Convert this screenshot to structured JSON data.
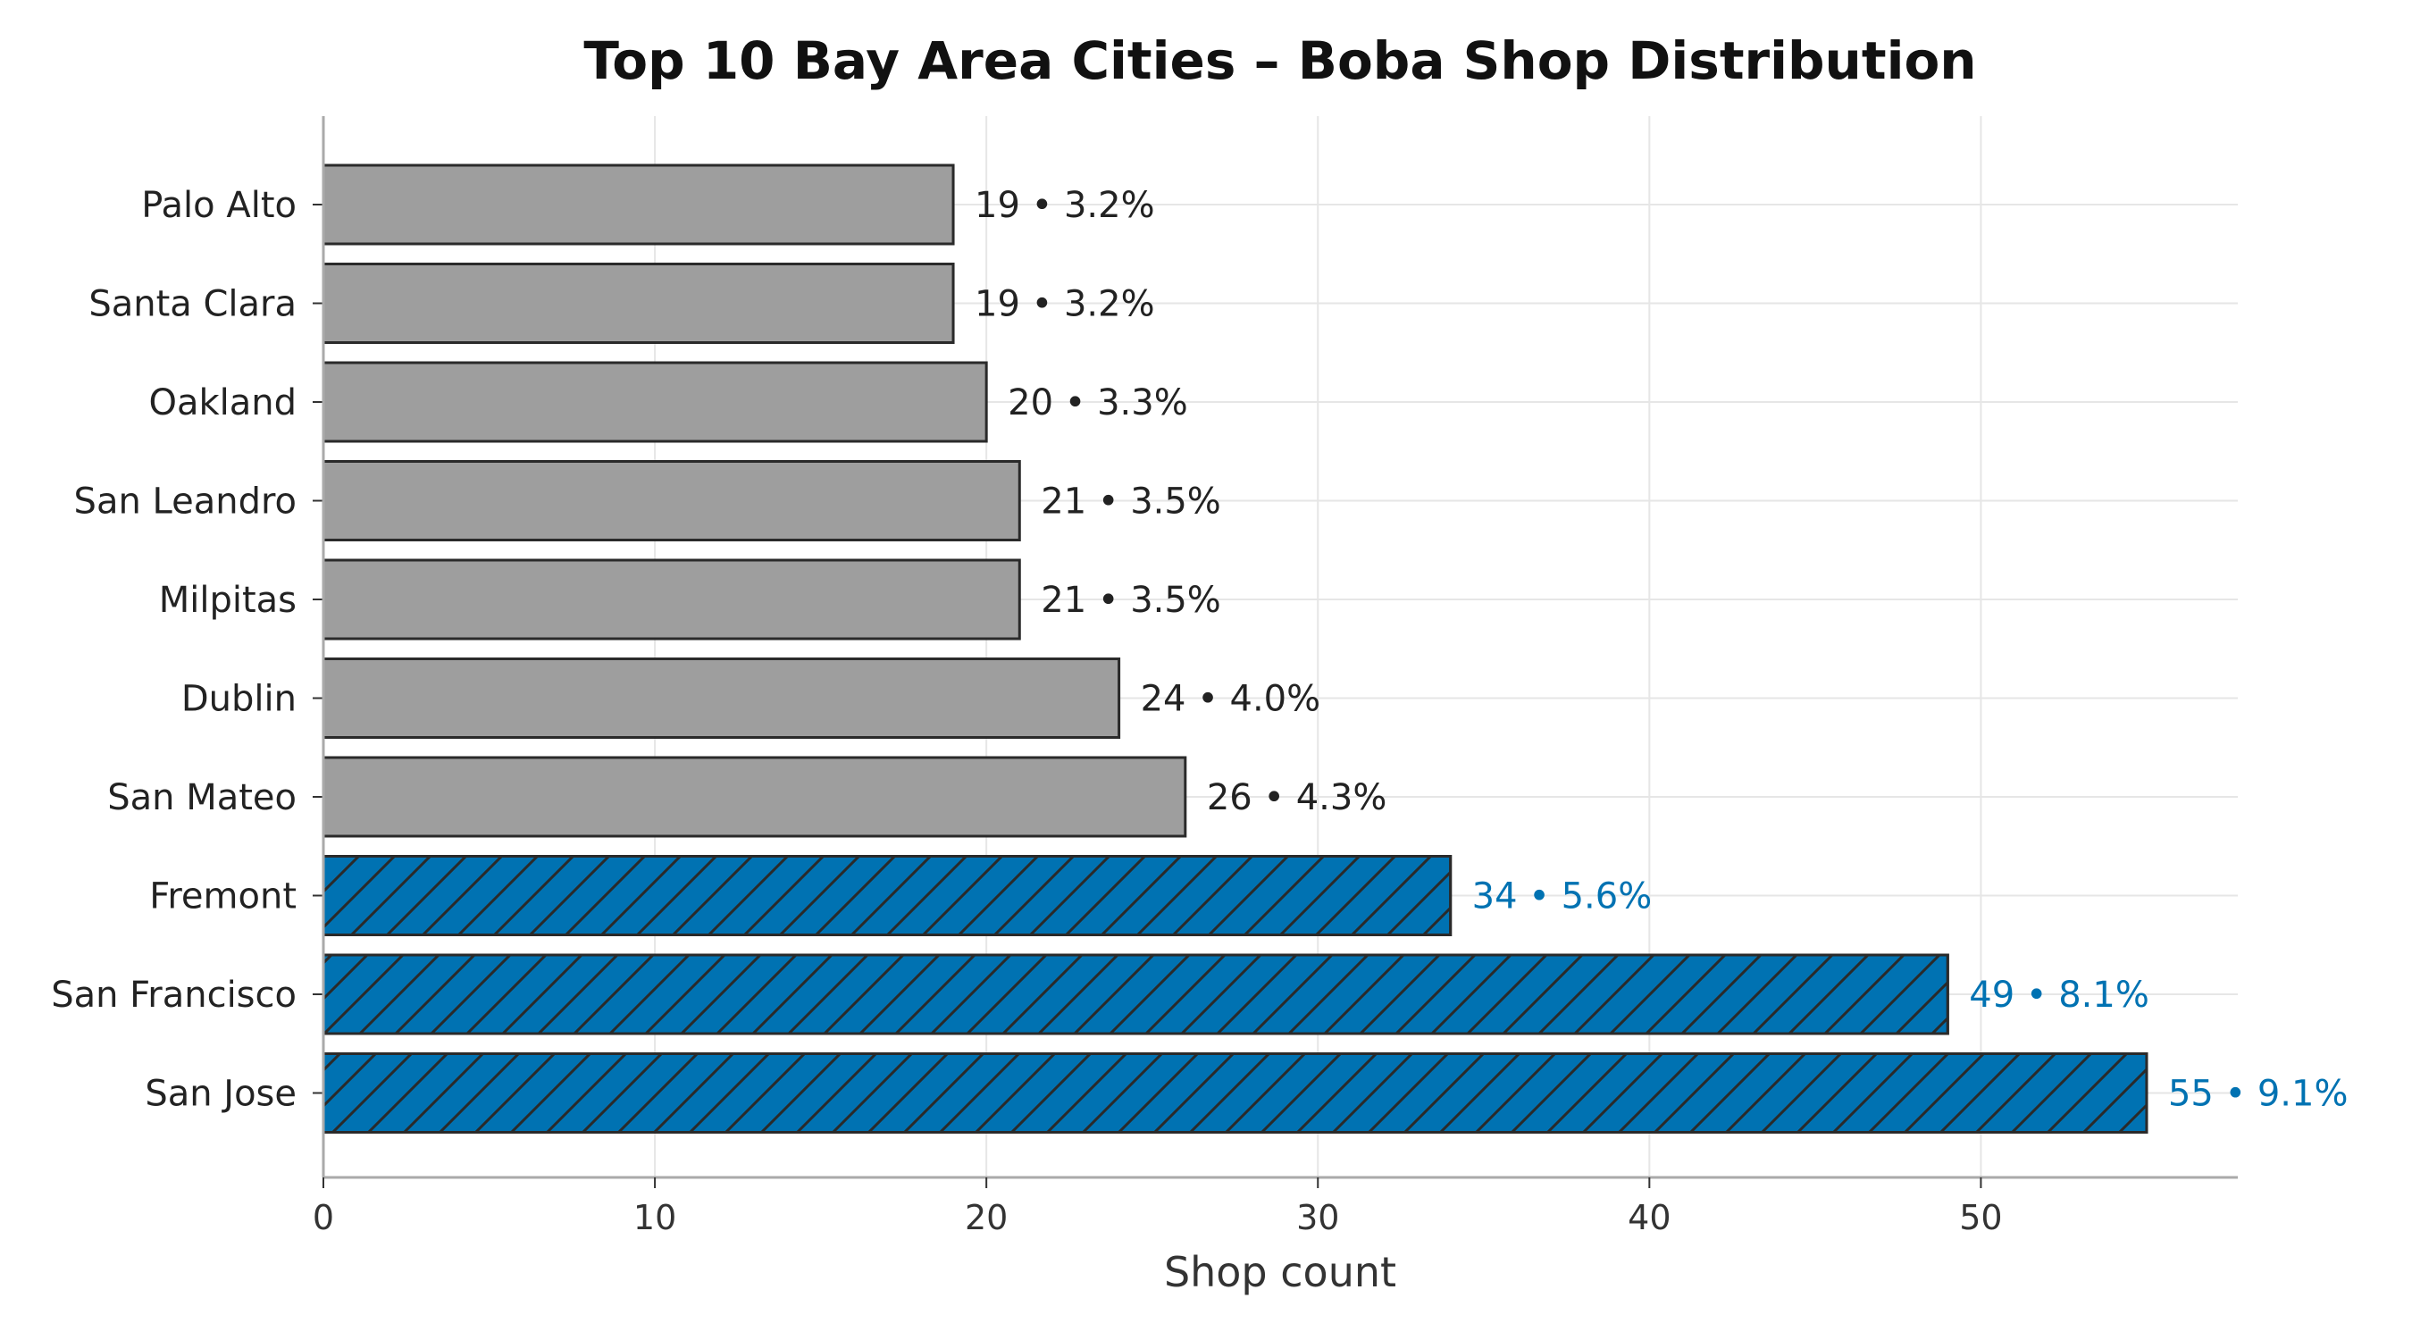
{
  "chart_data": {
    "type": "bar",
    "orientation": "horizontal",
    "title": "Top 10 Bay Area Cities – Boba Shop Distribution",
    "xlabel": "Shop count",
    "ylabel": "",
    "xlim": [
      0,
      57.75
    ],
    "xticks": [
      0,
      10,
      20,
      30,
      40,
      50
    ],
    "grid": true,
    "categories": [
      "Palo Alto",
      "Santa Clara",
      "Oakland",
      "San Leandro",
      "Milpitas",
      "Dublin",
      "San Mateo",
      "Fremont",
      "San Francisco",
      "San Jose"
    ],
    "values": [
      19,
      19,
      20,
      21,
      21,
      24,
      26,
      34,
      49,
      55
    ],
    "labels": [
      "19  •  3.2%",
      "19  •  3.2%",
      "20  •  3.3%",
      "21  •  3.5%",
      "21  •  3.5%",
      "24  •  4.0%",
      "26  •  4.3%",
      "34  •  5.6%",
      "49  •  8.1%",
      "55  •  9.1%"
    ],
    "highlighted": [
      false,
      false,
      false,
      false,
      false,
      false,
      false,
      true,
      true,
      true
    ],
    "colors": {
      "default_bar": "#9e9e9e",
      "highlight_bar": "#0072b2",
      "bar_edge": "#2a2a2a",
      "default_label": "#222222",
      "highlight_label": "#0072b2",
      "grid": "#e6e6e6",
      "axis": "#aaaaaa"
    },
    "highlight_pattern": "diagonal-hatch"
  }
}
